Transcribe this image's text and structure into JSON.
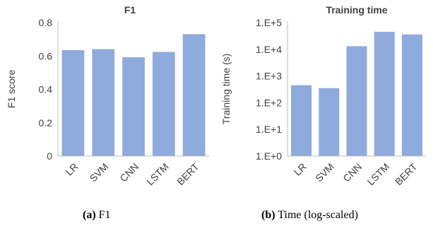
{
  "chart_data": [
    {
      "type": "bar",
      "title": "F1",
      "xlabel": "",
      "ylabel": "F1 score",
      "categories": [
        "LR",
        "SVM",
        "CNN",
        "LSTM",
        "BERT"
      ],
      "values": [
        0.635,
        0.641,
        0.592,
        0.624,
        0.73
      ],
      "ylim": [
        0,
        0.8
      ],
      "yticks": [
        0,
        0.2,
        0.4,
        0.6,
        0.8
      ],
      "ytick_labels": [
        "0",
        "0.2",
        "0.4",
        "0.6",
        "0.8"
      ],
      "bar_color": "#8FAADC",
      "grid": false,
      "caption_label": "(a)",
      "caption_text": "F1"
    },
    {
      "type": "bar",
      "title": "Training time",
      "xlabel": "",
      "ylabel": "Training time (s)",
      "categories": [
        "LR",
        "SVM",
        "CNN",
        "LSTM",
        "BERT"
      ],
      "values": [
        450,
        350,
        13000,
        45000,
        36000
      ],
      "scale": "log",
      "ylim": [
        1,
        100000
      ],
      "yticks": [
        1,
        10,
        100,
        1000,
        10000,
        100000
      ],
      "ytick_labels": [
        "1.E+0",
        "1.E+1",
        "1.E+2",
        "1.E+3",
        "1.E+4",
        "1.E+5"
      ],
      "bar_color": "#8FAADC",
      "grid": false,
      "caption_label": "(b)",
      "caption_text": "Time (log-scaled)"
    }
  ]
}
